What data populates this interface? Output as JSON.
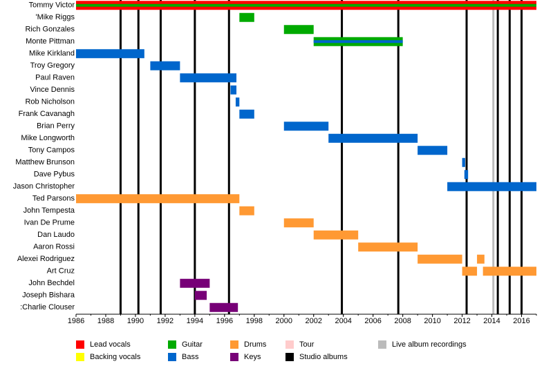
{
  "chart_data": {
    "type": "timeline",
    "xlim": [
      1986,
      2017
    ],
    "xticks": [
      1986,
      1988,
      1990,
      1992,
      1994,
      1996,
      1998,
      2000,
      2002,
      2004,
      2006,
      2008,
      2010,
      2012,
      2014,
      2016
    ],
    "legend": [
      {
        "name": "Lead vocals",
        "color": "#ff0000"
      },
      {
        "name": "Backing vocals",
        "color": "#ffff00"
      },
      {
        "name": "Guitar",
        "color": "#00aa00"
      },
      {
        "name": "Bass",
        "color": "#0066cc"
      },
      {
        "name": "Drums",
        "color": "#ff9933"
      },
      {
        "name": "Keys",
        "color": "#770077"
      },
      {
        "name": "Tour",
        "color": "#ffcccc"
      },
      {
        "name": "Studio albums",
        "color": "#000000"
      },
      {
        "name": "Live album recordings",
        "color": "#bbbbbb"
      }
    ],
    "members": [
      {
        "name": "Tommy Victor",
        "spans": [
          {
            "role": "Lead vocals",
            "start": 1986,
            "end": 2017
          },
          {
            "role": "Guitar",
            "start": 1986,
            "end": 2017
          }
        ]
      },
      {
        "name": "'Mike Riggs",
        "spans": [
          {
            "role": "Guitar",
            "start": 1997.0,
            "end": 1998.0
          }
        ]
      },
      {
        "name": "Rich Gonzales",
        "spans": [
          {
            "role": "Guitar",
            "start": 2000.0,
            "end": 2002.0
          }
        ]
      },
      {
        "name": "Monte Pittman",
        "spans": [
          {
            "role": "Guitar",
            "start": 2002.0,
            "end": 2008.0
          },
          {
            "role": "Bass",
            "start": 2002.0,
            "end": 2008.0
          }
        ]
      },
      {
        "name": "Mike Kirkland",
        "spans": [
          {
            "role": "Bass",
            "start": 1986,
            "end": 1990.6
          }
        ]
      },
      {
        "name": "Troy Gregory",
        "spans": [
          {
            "role": "Bass",
            "start": 1991.0,
            "end": 1993.0
          }
        ]
      },
      {
        "name": "Paul Raven",
        "spans": [
          {
            "role": "Bass",
            "start": 1993.0,
            "end": 1996.8
          }
        ]
      },
      {
        "name": "Vince Dennis",
        "spans": [
          {
            "role": "Bass",
            "start": 1996.4,
            "end": 1996.8
          }
        ]
      },
      {
        "name": "Rob Nicholson",
        "spans": [
          {
            "role": "Bass",
            "start": 1996.75,
            "end": 1997.0
          }
        ]
      },
      {
        "name": "Frank Cavanagh",
        "spans": [
          {
            "role": "Bass",
            "start": 1997.0,
            "end": 1998.0
          }
        ]
      },
      {
        "name": "Brian Perry",
        "spans": [
          {
            "role": "Bass",
            "start": 2000.0,
            "end": 2003.0
          }
        ]
      },
      {
        "name": "Mike Longworth",
        "spans": [
          {
            "role": "Bass",
            "start": 2003.0,
            "end": 2009.0
          }
        ]
      },
      {
        "name": "Tony Campos",
        "spans": [
          {
            "role": "Bass",
            "start": 2009.0,
            "end": 2011.0
          }
        ]
      },
      {
        "name": "Matthew Brunson",
        "spans": [
          {
            "role": "Bass",
            "start": 2012.0,
            "end": 2012.2
          }
        ]
      },
      {
        "name": "Dave Pybus",
        "spans": [
          {
            "role": "Bass",
            "start": 2012.15,
            "end": 2012.4
          }
        ]
      },
      {
        "name": "Jason Christopher",
        "spans": [
          {
            "role": "Bass",
            "start": 2011.0,
            "end": 2017
          }
        ]
      },
      {
        "name": "Ted Parsons",
        "spans": [
          {
            "role": "Drums",
            "start": 1986,
            "end": 1997.0
          }
        ]
      },
      {
        "name": "John Tempesta",
        "spans": [
          {
            "role": "Drums",
            "start": 1997.0,
            "end": 1998.0
          }
        ]
      },
      {
        "name": "Ivan De Prume",
        "spans": [
          {
            "role": "Drums",
            "start": 2000.0,
            "end": 2002.0
          }
        ]
      },
      {
        "name": "Dan Laudo",
        "spans": [
          {
            "role": "Drums",
            "start": 2002.0,
            "end": 2005.0
          }
        ]
      },
      {
        "name": "Aaron Rossi",
        "spans": [
          {
            "role": "Drums",
            "start": 2005.0,
            "end": 2009.0
          }
        ]
      },
      {
        "name": "Alexei Rodriguez",
        "spans": [
          {
            "role": "Drums",
            "start": 2009.0,
            "end": 2012.0
          },
          {
            "role": "Drums",
            "start": 2013.0,
            "end": 2013.5
          }
        ]
      },
      {
        "name": "Art Cruz",
        "spans": [
          {
            "role": "Drums",
            "start": 2012.0,
            "end": 2013.0
          },
          {
            "role": "Drums",
            "start": 2013.4,
            "end": 2017
          }
        ]
      },
      {
        "name": "John Bechdel",
        "spans": [
          {
            "role": "Keys",
            "start": 1993.0,
            "end": 1995.0
          }
        ]
      },
      {
        "name": "Joseph Bishara",
        "spans": [
          {
            "role": "Keys",
            "start": 1994.0,
            "end": 1994.8
          }
        ]
      },
      {
        "name": ":Charlie Clouser",
        "spans": [
          {
            "role": "Keys",
            "start": 1995.0,
            "end": 1996.9
          }
        ]
      }
    ],
    "events": [
      {
        "name": "Studio albums",
        "x": [
          1989.0,
          1990.2,
          1991.7,
          1994.0,
          1996.3,
          2003.9,
          2007.7,
          2012.3,
          2014.4,
          2015.2,
          2016.0
        ]
      },
      {
        "name": "Live album recordings",
        "x": [
          2014.1
        ]
      }
    ]
  }
}
